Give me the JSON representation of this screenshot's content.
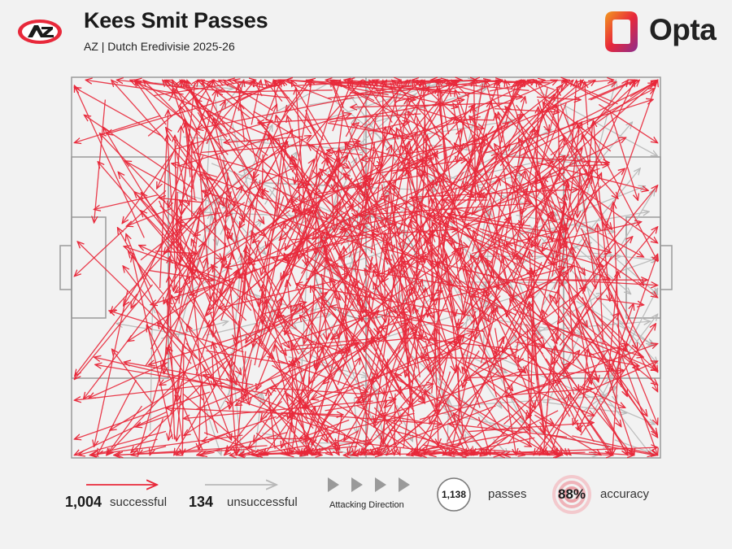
{
  "header": {
    "title": "Kees Smit Passes",
    "subtitle": "AZ | Dutch Eredivisie 2025-26",
    "brand": "Opta",
    "club_logo_text": "AZ"
  },
  "colors": {
    "successful": "#e8283a",
    "unsuccessful": "#b8b8b8",
    "pitch_lines": "#9a9a9a",
    "background": "#f2f2f2",
    "opta_gradient": [
      "#f29a1f",
      "#e8283a",
      "#8b2d8f"
    ]
  },
  "legend": {
    "successful_count": "1,004",
    "successful_label": "successful",
    "unsuccessful_count": "134",
    "unsuccessful_label": "unsuccessful",
    "direction_label": "Attacking Direction",
    "total_passes": "1,138",
    "total_label": "passes",
    "accuracy": "88%",
    "accuracy_label": "accuracy"
  },
  "chart_data": {
    "type": "pass-map",
    "pitch": {
      "length": 105,
      "width": 68,
      "attacking_direction": "left-to-right"
    },
    "totals": {
      "passes": 1138,
      "successful": 1004,
      "unsuccessful": 134,
      "accuracy_pct": 88
    },
    "series": [
      {
        "name": "successful",
        "color": "#e8283a",
        "passes": [
          [
            6,
            4,
            4,
            26
          ],
          [
            10,
            38,
            4,
            66
          ],
          [
            35,
            14,
            22,
            4
          ],
          [
            42,
            22,
            24,
            6
          ],
          [
            22,
            28,
            5,
            10
          ],
          [
            30,
            56,
            4,
            50
          ],
          [
            44,
            48,
            20,
            64
          ],
          [
            52,
            40,
            34,
            20
          ],
          [
            48,
            30,
            60,
            16
          ],
          [
            55,
            26,
            78,
            8
          ],
          [
            60,
            34,
            88,
            14
          ],
          [
            62,
            46,
            86,
            62
          ],
          [
            70,
            40,
            94,
            54
          ],
          [
            74,
            28,
            96,
            36
          ],
          [
            66,
            20,
            104,
            1
          ],
          [
            80,
            14,
            104,
            2
          ],
          [
            58,
            54,
            82,
            66
          ],
          [
            40,
            60,
            66,
            62
          ],
          [
            50,
            18,
            38,
            46
          ],
          [
            64,
            12,
            52,
            58
          ],
          [
            96,
            6,
            101,
            22
          ],
          [
            94,
            20,
            96,
            40
          ],
          [
            34,
            40,
            12,
            30
          ],
          [
            28,
            18,
            16,
            52
          ],
          [
            56,
            62,
            70,
            46
          ],
          [
            84,
            44,
            102,
            50
          ],
          [
            46,
            8,
            70,
            4
          ],
          [
            38,
            26,
            58,
            42
          ],
          [
            60,
            58,
            46,
            36
          ],
          [
            72,
            10,
            56,
            30
          ]
        ]
      },
      {
        "name": "unsuccessful",
        "color": "#b8b8b8",
        "passes": [
          [
            60,
            4,
            64,
            1
          ],
          [
            80,
            28,
            103,
            24
          ],
          [
            76,
            50,
            104,
            62
          ],
          [
            90,
            40,
            104,
            48
          ],
          [
            70,
            18,
            88,
            14
          ],
          [
            66,
            60,
            96,
            66
          ],
          [
            84,
            58,
            99,
            60
          ],
          [
            72,
            32,
            98,
            32
          ],
          [
            88,
            22,
            100,
            8
          ],
          [
            54,
            8,
            74,
            2
          ],
          [
            20,
            46,
            8,
            44
          ],
          [
            98,
            30,
            104,
            20
          ]
        ]
      }
    ]
  }
}
